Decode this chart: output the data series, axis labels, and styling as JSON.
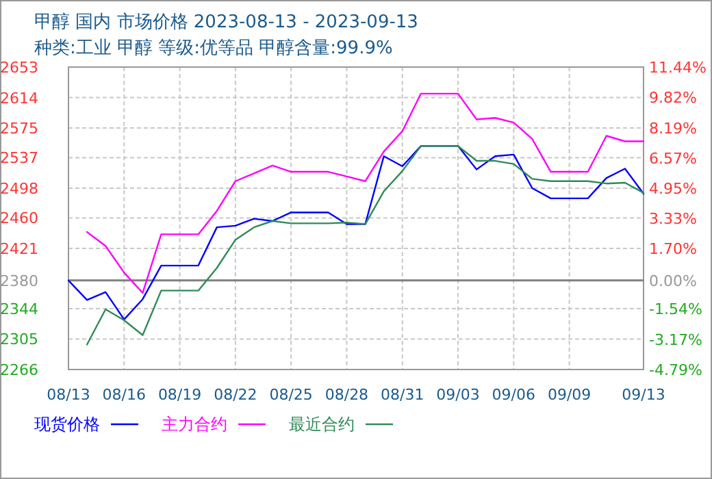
{
  "chart_data": {
    "type": "line",
    "title": "甲醇 国内 市场价格 2023-08-13 - 2023-09-13",
    "subtitle": "种类:工业 甲醇 等级:优等品 甲醇含量:99.9%",
    "x": [
      "--08-13",
      "--08-14",
      "--08-15",
      "--08-16",
      "--08-17",
      "--08-18",
      "--08-19",
      "--08-20",
      "--08-21",
      "--08-22",
      "--08-23",
      "--08-24",
      "--08-25",
      "--08-26",
      "--08-27",
      "--08-28",
      "--08-29",
      "--08-30",
      "--08-31",
      "--09-01",
      "--09-02",
      "--09-03",
      "--09-04",
      "--09-05",
      "--09-06",
      "--09-07",
      "--09-08",
      "--09-09",
      "--09-10",
      "--09-11",
      "--09-12",
      "--09-13"
    ],
    "series": [
      {
        "name": "现货价格",
        "color": "#0000ff",
        "values": [
          2380,
          2355,
          2365,
          2330,
          2356,
          2399,
          2399,
          2399,
          2448,
          2450,
          2459,
          2456,
          2467,
          2467,
          2467,
          2452,
          2452,
          2539,
          2526,
          2552,
          2552,
          2552,
          2522,
          2539,
          2541,
          2498,
          2485,
          2485,
          2485,
          2511,
          2523,
          2491
        ]
      },
      {
        "name": "主力合约",
        "color": "#ff00ff",
        "values": [
          null,
          2442,
          2424,
          2390,
          2364,
          2439,
          2439,
          2439,
          2469,
          2507,
          2517,
          2527,
          2519,
          2519,
          2519,
          2513,
          2507,
          2545,
          2571,
          2619,
          2619,
          2619,
          2586,
          2588,
          2582,
          2561,
          2519,
          2519,
          2519,
          2565,
          2558,
          2558
        ]
      },
      {
        "name": "最近合约",
        "color": "#2e8b57",
        "values": [
          null,
          2298,
          2343,
          2329,
          2310,
          2367,
          2367,
          2367,
          2396,
          2432,
          2448,
          2456,
          2453,
          2453,
          2453,
          2454,
          2452,
          2494,
          2520,
          2552,
          2552,
          2552,
          2533,
          2533,
          2529,
          2510,
          2507,
          2507,
          2507,
          2504,
          2505,
          2492
        ]
      }
    ],
    "xlim": [
      "--08-13",
      "--09-13"
    ],
    "xticks": [
      {
        "value": "--08-13",
        "label": "08/13"
      },
      {
        "value": "--08-16",
        "label": "08/16"
      },
      {
        "value": "--08-19",
        "label": "08/19"
      },
      {
        "value": "--08-22",
        "label": "08/22"
      },
      {
        "value": "--08-25",
        "label": "08/25"
      },
      {
        "value": "--08-28",
        "label": "08/28"
      },
      {
        "value": "--08-31",
        "label": "08/31"
      },
      {
        "value": "--09-03",
        "label": "09/03"
      },
      {
        "value": "--09-06",
        "label": "09/06"
      },
      {
        "value": "--09-09",
        "label": "09/09"
      },
      {
        "value": "--09-13",
        "label": "09/13"
      }
    ],
    "ylim": [
      2266,
      2653
    ],
    "yticks": [
      2266,
      2305,
      2344,
      2380,
      2421,
      2460,
      2498,
      2537,
      2575,
      2614,
      2653
    ],
    "y2lim": [
      -4.79,
      11.44
    ],
    "y2ticks": [
      {
        "value": -4.79,
        "label": "-4.79%"
      },
      {
        "value": -3.17,
        "label": "-3.17%"
      },
      {
        "value": -1.54,
        "label": "-1.54%"
      },
      {
        "value": 0,
        "label": "0.00%"
      },
      {
        "value": 1.7,
        "label": "1.70%"
      },
      {
        "value": 3.33,
        "label": "3.33%"
      },
      {
        "value": 4.95,
        "label": "4.95%"
      },
      {
        "value": 6.57,
        "label": "6.57%"
      },
      {
        "value": 8.19,
        "label": "8.19%"
      },
      {
        "value": 9.82,
        "label": "9.82%"
      },
      {
        "value": 11.44,
        "label": "11.44%"
      }
    ],
    "ref_lines": [
      {
        "axis": "y",
        "value": 2380,
        "color": "#808080"
      }
    ],
    "grid": true,
    "legend": "bottom",
    "marker": "none",
    "line_style": "solid"
  }
}
